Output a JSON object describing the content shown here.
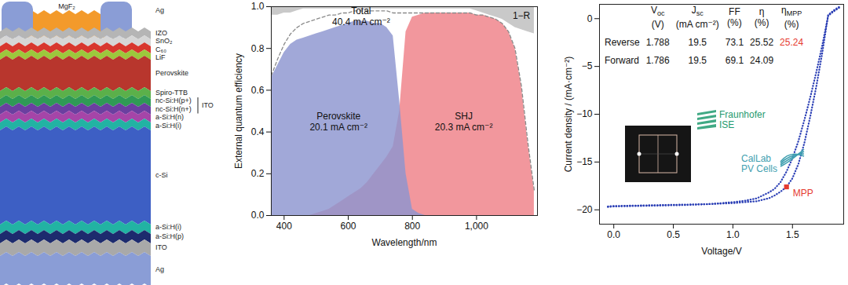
{
  "diagram": {
    "top": {
      "contact": {
        "label": "Ag",
        "color": "#8a9dd6"
      },
      "coating": {
        "label": "MgF₂",
        "color": "#f39a2b"
      }
    },
    "layers": [
      {
        "label": "IZO",
        "color": "#b5b5b5"
      },
      {
        "label": "SnO₂",
        "color": "#d6d6d6"
      },
      {
        "label": "C₆₀",
        "color": "#d8372e"
      },
      {
        "label": "LiF",
        "color": "#9cc83c"
      },
      {
        "label": "Perovskite",
        "color": "#b8362d"
      },
      {
        "label": "Spiro-TTB",
        "color": "#5bb04a"
      },
      {
        "label": "nc-Si:H(p+)",
        "color": "#2f9a55"
      },
      {
        "label": "nc-Si:H(n+)",
        "color": "#6b3fa0"
      },
      {
        "label": "a-Si:H(n)",
        "color": "#a545a8"
      },
      {
        "label": "a-Si:H(i)",
        "color": "#22b3a3"
      },
      {
        "label": "c-Si",
        "color": "#3d5fc4"
      },
      {
        "label": "a-Si:H(i)",
        "color": "#22b3a3"
      },
      {
        "label": "a-Si:H(p)",
        "color": "#1d2b6e"
      },
      {
        "label": "ITO",
        "color": "#a9a9a9"
      },
      {
        "label": "Ag",
        "color": "#8a9dd6"
      }
    ],
    "bracket": {
      "label": "ITO",
      "layers": [
        "nc-Si:H(p+)",
        "nc-Si:H(n+)"
      ]
    }
  },
  "chart_data": [
    {
      "type": "area",
      "x_label": "Wavelength/nm",
      "y_label": "External quantum efficiency",
      "x": [
        360,
        380,
        400,
        420,
        440,
        460,
        480,
        500,
        520,
        540,
        560,
        580,
        600,
        620,
        640,
        660,
        680,
        700,
        720,
        740,
        760,
        780,
        800,
        820,
        840,
        860,
        880,
        900,
        920,
        940,
        960,
        980,
        1000,
        1020,
        1040,
        1060,
        1080,
        1100,
        1120,
        1140,
        1160,
        1180
      ],
      "series": [
        {
          "name": "1−R",
          "type": "area_top",
          "color": "#c9c9c9",
          "values": [
            0.96,
            0.96,
            0.97,
            0.97,
            0.98,
            0.99,
            0.99,
            0.99,
            0.99,
            0.99,
            0.99,
            0.99,
            0.99,
            0.99,
            0.99,
            0.99,
            0.99,
            0.99,
            0.99,
            0.99,
            0.99,
            0.99,
            0.99,
            0.99,
            0.99,
            0.99,
            0.99,
            0.99,
            0.99,
            0.99,
            0.99,
            0.99,
            0.98,
            0.97,
            0.96,
            0.95,
            0.94,
            0.92,
            0.9,
            0.89,
            0.88,
            0.87
          ]
        },
        {
          "name": "SHJ",
          "type": "area",
          "color": "#ef8088",
          "values": [
            0,
            0,
            0,
            0,
            0,
            0,
            0,
            0.01,
            0.02,
            0.03,
            0.05,
            0.07,
            0.09,
            0.11,
            0.13,
            0.16,
            0.2,
            0.24,
            0.28,
            0.33,
            0.5,
            0.88,
            0.95,
            0.96,
            0.97,
            0.97,
            0.97,
            0.97,
            0.97,
            0.97,
            0.97,
            0.97,
            0.96,
            0.96,
            0.95,
            0.94,
            0.92,
            0.88,
            0.8,
            0.62,
            0.35,
            0.12
          ]
        },
        {
          "name": "Perovskite",
          "type": "area",
          "color": "#8c95d0",
          "values": [
            0.66,
            0.72,
            0.78,
            0.82,
            0.84,
            0.85,
            0.86,
            0.87,
            0.88,
            0.89,
            0.9,
            0.91,
            0.92,
            0.93,
            0.93,
            0.93,
            0.92,
            0.92,
            0.9,
            0.86,
            0.55,
            0.2,
            0.03,
            0.01,
            0,
            0,
            0,
            0,
            0,
            0,
            0,
            0,
            0,
            0,
            0,
            0,
            0,
            0,
            0,
            0,
            0,
            0
          ]
        },
        {
          "name": "Total",
          "type": "line",
          "line_style": "dashed",
          "color": "#8a8a8a",
          "values": [
            0.67,
            0.75,
            0.82,
            0.87,
            0.9,
            0.92,
            0.93,
            0.94,
            0.95,
            0.96,
            0.96,
            0.97,
            0.97,
            0.98,
            0.98,
            0.98,
            0.98,
            0.98,
            0.98,
            0.97,
            0.97,
            0.97,
            0.97,
            0.97,
            0.97,
            0.97,
            0.97,
            0.97,
            0.97,
            0.97,
            0.97,
            0.97,
            0.96,
            0.96,
            0.95,
            0.94,
            0.92,
            0.88,
            0.8,
            0.62,
            0.35,
            0.12
          ]
        }
      ],
      "annotations": [
        {
          "text": [
            "Total",
            "40.4 mA cm⁻²"
          ],
          "x": 640,
          "y": 0.955
        },
        {
          "text": [
            "Perovskite",
            "20.1 mA cm⁻²"
          ],
          "x": 570,
          "y": 0.45
        },
        {
          "text": [
            "SHJ",
            "20.3 mA cm⁻²"
          ],
          "x": 960,
          "y": 0.45
        },
        {
          "text": [
            "1−R"
          ],
          "x": 1140,
          "y": 0.96
        }
      ],
      "xlim": [
        360,
        1190
      ],
      "xticks": [
        400,
        600,
        800,
        {
          "value": 1000,
          "label": "1,000"
        }
      ],
      "ylim": [
        0,
        1
      ],
      "yticks": [
        {
          "value": 0,
          "label": "0.0"
        },
        0.2,
        0.4,
        0.6,
        0.8,
        {
          "value": 1,
          "label": "1.0"
        }
      ]
    },
    {
      "type": "line",
      "x_label": "Voltage/V",
      "y_label": "Current density / (mA·cm⁻²)",
      "x": [
        -0.05,
        0,
        0.2,
        0.4,
        0.6,
        0.8,
        1.0,
        1.1,
        1.2,
        1.3,
        1.35,
        1.4,
        1.45,
        1.5,
        1.55,
        1.6,
        1.65,
        1.7,
        1.75,
        1.8,
        1.85,
        1.9
      ],
      "series": [
        {
          "name": "Reverse",
          "color": "#2b3fb5",
          "line_style": "dotted",
          "values": [
            -19.65,
            -19.6,
            -19.55,
            -19.5,
            -19.45,
            -19.4,
            -19.3,
            -19.2,
            -19.1,
            -18.8,
            -18.5,
            -18.1,
            -17.6,
            -16.7,
            -15.2,
            -13.0,
            -10.2,
            -7.1,
            -3.6,
            0.4,
            0.9,
            1.3
          ]
        },
        {
          "name": "Forward",
          "color": "#2b3fb5",
          "line_style": "dotted",
          "values": [
            -19.7,
            -19.65,
            -19.6,
            -19.55,
            -19.5,
            -19.4,
            -19.2,
            -19.05,
            -18.8,
            -18.2,
            -17.8,
            -17.1,
            -16.0,
            -14.6,
            -12.8,
            -10.6,
            -8.2,
            -5.6,
            -2.8,
            0.3,
            0.8,
            1.2
          ]
        }
      ],
      "points": [
        {
          "name": "MPP",
          "x": 1.45,
          "y": -17.6,
          "color": "#e53a2f",
          "marker": "square"
        }
      ],
      "table": {
        "columns": [
          {
            "symbol": "V",
            "sub": "oc",
            "unit": "(V)"
          },
          {
            "symbol": "J",
            "sub": "sc",
            "unit": "(mA cm⁻²)"
          },
          {
            "symbol": "FF",
            "unit": "(%)"
          },
          {
            "symbol": "η",
            "unit": "(%)"
          },
          {
            "symbol": "η",
            "sub": "MPP",
            "unit": "(%)",
            "color": "#e53a2f"
          }
        ],
        "rows": [
          {
            "label": "Reverse",
            "values": [
              1.788,
              19.5,
              73.1,
              25.52,
              25.24
            ]
          },
          {
            "label": "Forward",
            "values": [
              1.786,
              19.5,
              69.1,
              24.09,
              null
            ]
          }
        ]
      },
      "logos": [
        {
          "lines": [
            "Fraunhofer",
            "ISE"
          ],
          "color": "#1f9a6e"
        },
        {
          "lines": [
            "CalLab",
            "PV Cells"
          ],
          "color": "#3f9fb0"
        }
      ],
      "xlim": [
        -0.12,
        1.93
      ],
      "xticks": [
        {
          "value": 0,
          "label": "0.0"
        },
        0.5,
        {
          "value": 1,
          "label": "1.0"
        },
        1.5
      ],
      "ylim": [
        -21.5,
        1.5
      ],
      "yticks": [
        0,
        {
          "value": -5,
          "label": "−5"
        },
        {
          "value": -10,
          "label": "−10"
        },
        {
          "value": -15,
          "label": "−15"
        },
        {
          "value": -20,
          "label": "−20"
        }
      ]
    }
  ]
}
